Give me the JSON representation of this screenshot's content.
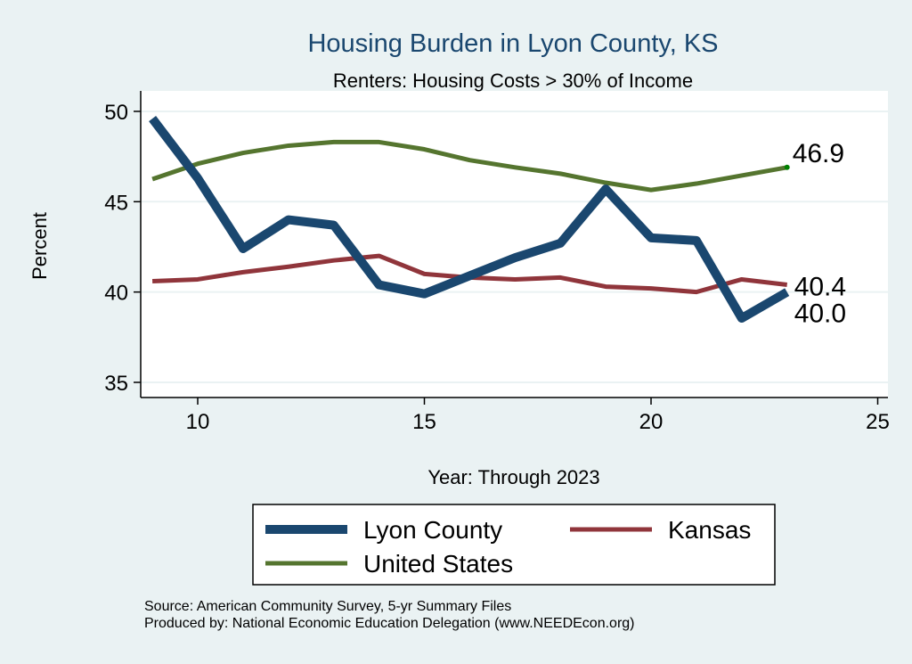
{
  "chart_data": {
    "type": "line",
    "title": "Housing Burden in Lyon County, KS",
    "subtitle": "Renters: Housing Costs > 30% of Income",
    "xlabel": "Year: Through 2023",
    "ylabel": "Percent",
    "xlim": [
      8.8,
      25.2
    ],
    "ylim": [
      34.1,
      51.2
    ],
    "xticks": [
      10,
      15,
      20,
      25
    ],
    "yticks": [
      35,
      40,
      45,
      50
    ],
    "grid": true,
    "legend_position": "bottom",
    "x": [
      9,
      10,
      11,
      12,
      13,
      14,
      15,
      16,
      17,
      18,
      19,
      20,
      21,
      22,
      23
    ],
    "series": [
      {
        "name": "Lyon County",
        "color": "#1a476f",
        "values": [
          49.6,
          46.3,
          42.4,
          44.0,
          43.7,
          40.4,
          39.9,
          40.9,
          41.9,
          42.7,
          45.7,
          43.0,
          42.85,
          38.55,
          40.0
        ]
      },
      {
        "name": "Kansas",
        "color": "#90353b",
        "values": [
          40.6,
          40.7,
          41.1,
          41.4,
          41.75,
          42.0,
          41.0,
          40.8,
          40.7,
          40.8,
          40.3,
          40.2,
          40.0,
          40.7,
          40.4
        ]
      },
      {
        "name": "United States",
        "color": "#55752f",
        "values": [
          46.25,
          47.1,
          47.7,
          48.1,
          48.3,
          48.3,
          47.9,
          47.3,
          46.9,
          46.55,
          46.05,
          45.65,
          46.0,
          46.45,
          46.9
        ]
      }
    ],
    "annotations": [
      {
        "series": "United States",
        "x": 23,
        "text": "46.9"
      },
      {
        "series": "Kansas",
        "x": 23,
        "text": "40.4"
      },
      {
        "series": "Lyon County",
        "x": 23,
        "text": "40.0"
      }
    ]
  },
  "footer": {
    "source": "Source: American Community Survey, 5-yr Summary Files",
    "produced": "Produced by: National Economic Education Delegation (www.NEEDEcon.org)"
  }
}
